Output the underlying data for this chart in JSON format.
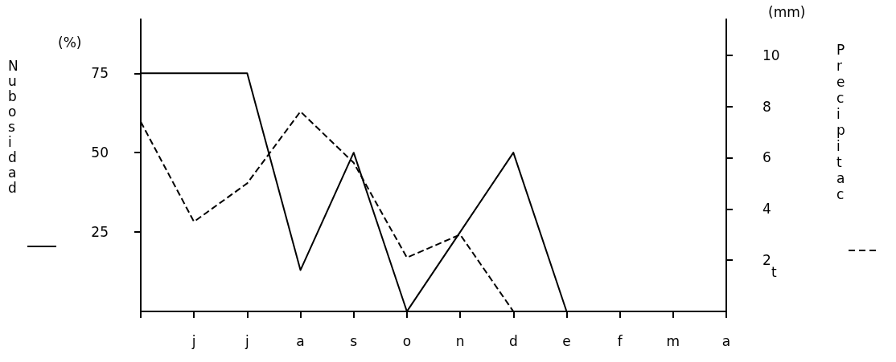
{
  "chart_data": {
    "type": "line",
    "ylabel": "Nubosidad",
    "y2label": "Precipitac",
    "annotations": [
      "(%)",
      "(mm)",
      "t"
    ],
    "categories": [
      null,
      "j",
      "j",
      "a",
      "s",
      "o",
      "n",
      "d",
      "e",
      "f",
      "m",
      "a"
    ],
    "series": [
      {
        "color": "#000000",
        "line_style": "solid",
        "values": [
          75,
          75,
          75,
          13,
          50,
          0,
          25,
          50,
          0,
          null,
          null,
          null
        ]
      },
      {
        "color": "#000000",
        "line_style": "dashed",
        "axis": "y2",
        "values": [
          7.4,
          3.5,
          5.0,
          7.8,
          5.8,
          2.1,
          3.0,
          0,
          null,
          null,
          null,
          null
        ]
      }
    ],
    "ylim": [
      0,
      92
    ],
    "yticks": [
      25,
      50,
      75
    ],
    "y2lim": [
      0,
      11.4
    ],
    "y2ticks": [
      2,
      4,
      6,
      8,
      10
    ],
    "grid": false,
    "marker": "none"
  }
}
